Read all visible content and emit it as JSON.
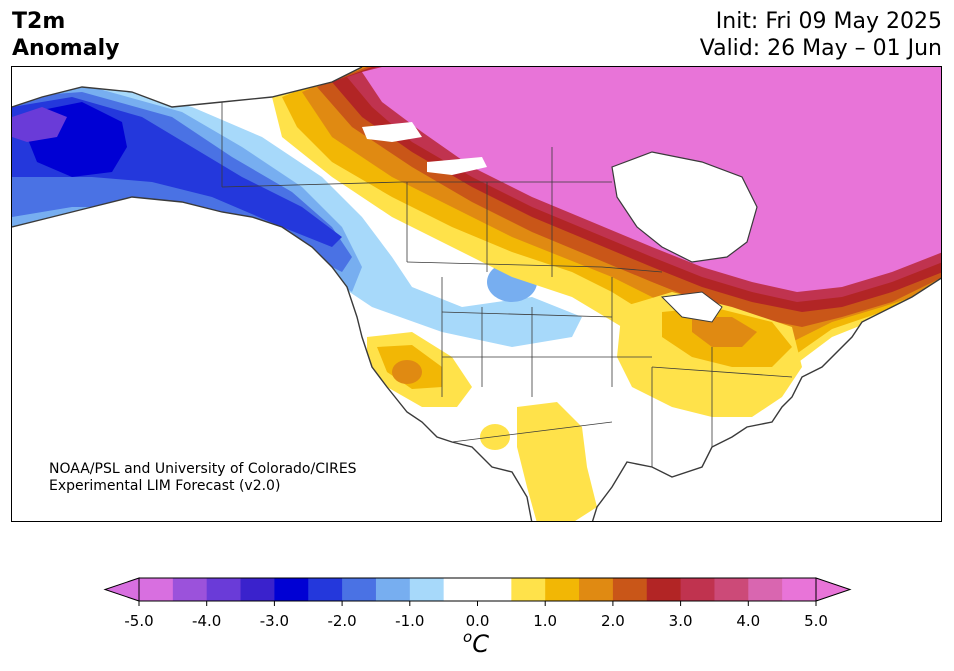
{
  "header": {
    "variable_line1": "T2m",
    "variable_line2": "Anomaly",
    "init": "Init: Fri 09 May 2025",
    "valid": "Valid: 26 May – 01 Jun"
  },
  "credit": {
    "line1": "NOAA/PSL and University of Colorado/CIRES",
    "line2": "Experimental LIM Forecast (v2.0)"
  },
  "colorbar": {
    "unit_symbol": "o",
    "unit_letter": "C",
    "ticks": [
      "-5.0",
      "-4.0",
      "-3.0",
      "-2.0",
      "-1.0",
      "0.0",
      "1.0",
      "2.0",
      "3.0",
      "4.0",
      "5.0"
    ],
    "levels": [
      -5.0,
      -4.5,
      -4.0,
      -3.5,
      -3.0,
      -2.5,
      -2.0,
      -1.5,
      -1.0,
      -0.5,
      0.5,
      1.0,
      1.5,
      2.0,
      2.5,
      3.0,
      3.5,
      4.0,
      4.5,
      5.0
    ],
    "colors": [
      "#d86fe0",
      "#9b52db",
      "#6a3bd8",
      "#3a22cc",
      "#0000d4",
      "#2438dc",
      "#4a72e4",
      "#77aef0",
      "#a7d9fa",
      "#ffffff",
      "#ffe24a",
      "#f2b705",
      "#e08a12",
      "#c95618",
      "#b22525",
      "#c0334f",
      "#cc4a78",
      "#d966b0",
      "#e874d8"
    ],
    "under_color": "#d86fe0",
    "over_color": "#e874d8"
  }
}
